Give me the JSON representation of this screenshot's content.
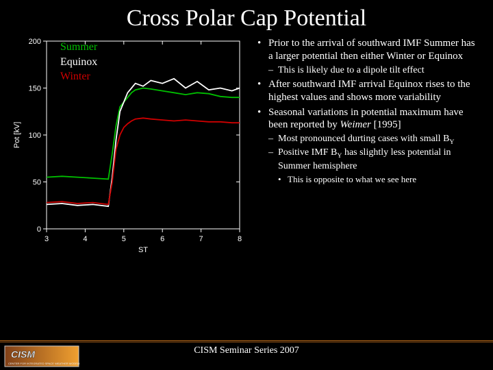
{
  "title": "Cross Polar Cap Potential",
  "legend": {
    "items": [
      {
        "label": "Summer",
        "color": "#00c000"
      },
      {
        "label": "Equinox",
        "color": "#ffffff"
      },
      {
        "label": "Winter",
        "color": "#d00000"
      }
    ]
  },
  "chart": {
    "type": "line",
    "background": "#000000",
    "axis_color": "#ffffff",
    "tick_color": "#ffffff",
    "text_color": "#ffffff",
    "font_size_pt": 11,
    "xlabel": "ST",
    "ylabel": "Pot [kV]",
    "xlim": [
      3,
      8
    ],
    "ylim": [
      0,
      200
    ],
    "xticks": [
      3,
      4,
      5,
      6,
      7,
      8
    ],
    "yticks": [
      0,
      50,
      100,
      150,
      200
    ],
    "grid": false,
    "line_width": 1.8,
    "series": [
      {
        "name": "Summer",
        "color": "#00c000",
        "x": [
          3.0,
          3.4,
          3.8,
          4.2,
          4.6,
          4.7,
          4.8,
          4.9,
          5.0,
          5.1,
          5.2,
          5.3,
          5.5,
          5.7,
          6.0,
          6.3,
          6.6,
          6.9,
          7.2,
          7.5,
          7.8,
          8.0
        ],
        "y": [
          55,
          56,
          55,
          54,
          53,
          80,
          110,
          130,
          135,
          140,
          145,
          148,
          150,
          149,
          147,
          145,
          143,
          145,
          144,
          141,
          140,
          140
        ]
      },
      {
        "name": "Equinox",
        "color": "#ffffff",
        "x": [
          3.0,
          3.4,
          3.8,
          4.2,
          4.6,
          4.7,
          4.8,
          4.9,
          5.0,
          5.1,
          5.2,
          5.3,
          5.5,
          5.7,
          6.0,
          6.3,
          6.6,
          6.9,
          7.2,
          7.5,
          7.8,
          8.0
        ],
        "y": [
          26,
          27,
          25,
          26,
          24,
          55,
          95,
          125,
          135,
          145,
          150,
          155,
          152,
          158,
          155,
          160,
          150,
          157,
          148,
          150,
          147,
          150
        ]
      },
      {
        "name": "Winter",
        "color": "#d00000",
        "x": [
          3.0,
          3.4,
          3.8,
          4.2,
          4.6,
          4.7,
          4.8,
          4.9,
          5.0,
          5.1,
          5.2,
          5.3,
          5.5,
          5.7,
          6.0,
          6.3,
          6.6,
          6.9,
          7.2,
          7.5,
          7.8,
          8.0
        ],
        "y": [
          28,
          29,
          27,
          28,
          26,
          50,
          85,
          100,
          108,
          112,
          115,
          117,
          118,
          117,
          116,
          115,
          116,
          115,
          114,
          114,
          113,
          113
        ]
      }
    ]
  },
  "bullets": {
    "b1": "Prior to the arrival of southward IMF Summer has a larger potential then either Winter or Equinox",
    "b1_sub1": "This is likely due to a dipole tilt effect",
    "b2": "After southward IMF arrival Equinox rises to the highest values and shows more variability",
    "b3_prefix": "Seasonal variations in potential maximum have been reported by ",
    "b3_author": "Weimer",
    "b3_year": " [1995]",
    "b3_sub1_prefix": "Most pronounced durting cases with small B",
    "b3_sub1_sub": "Y",
    "b3_sub2_prefix": "Positive IMF B",
    "b3_sub2_sub": "Y",
    "b3_sub2_suffix": " has slightly less potential in Summer hemisphere",
    "b3_sub2_sub1": "This is opposite to what we see here"
  },
  "footer": {
    "text": "CISM Seminar Series 2007",
    "logo_text_top": "CISM",
    "logo_bg_left": "#804018",
    "logo_bg_right": "#f0a030",
    "logo_frame": "#c8c8c8",
    "line_color": "#e08020"
  }
}
